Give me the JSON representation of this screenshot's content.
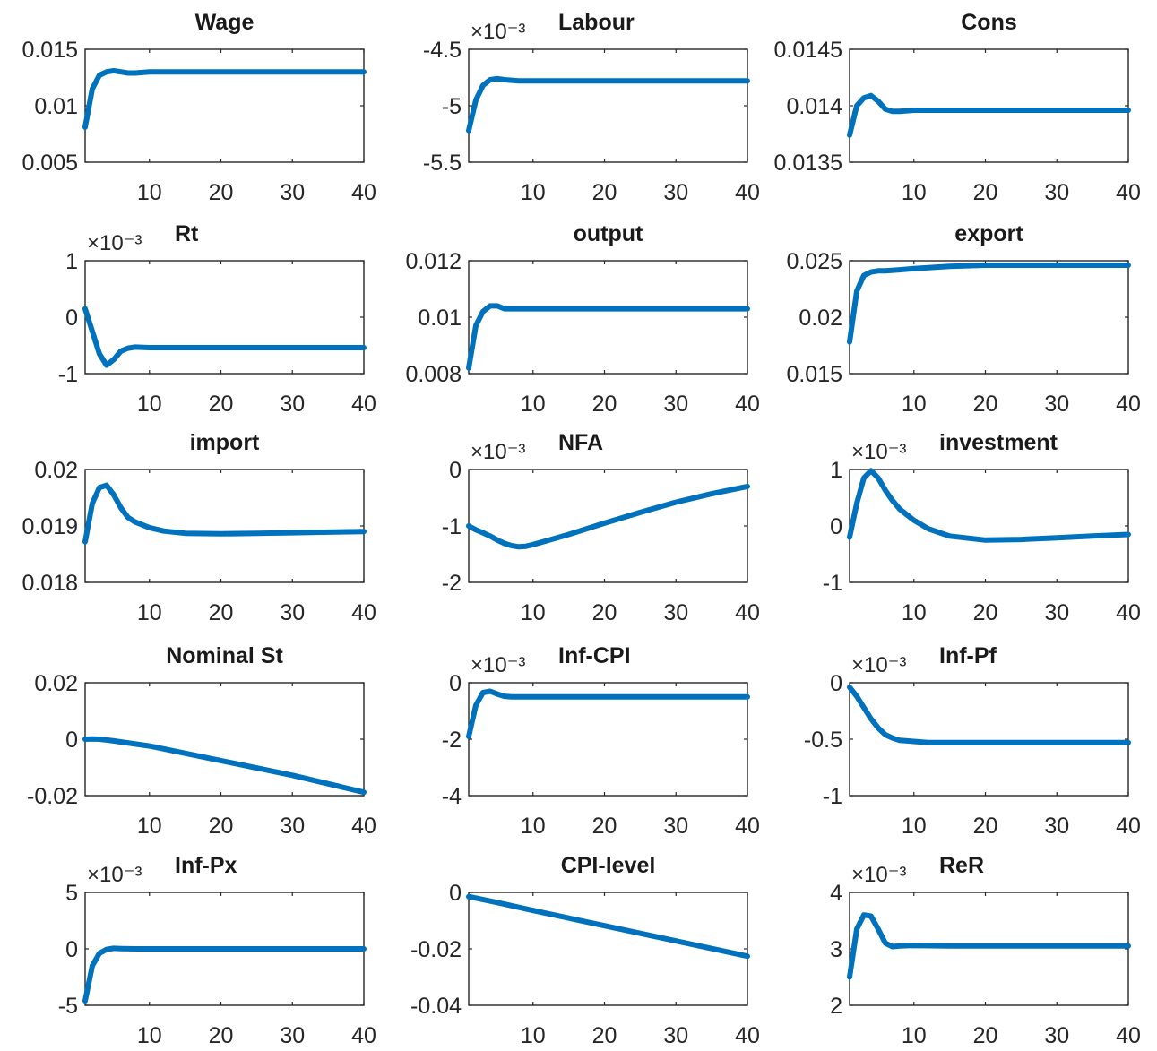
{
  "figure": {
    "rows": 5,
    "cols": 3
  },
  "chart_data": [
    {
      "type": "line",
      "title": "Wage",
      "exponent": "",
      "xticks": [
        10,
        20,
        30,
        40
      ],
      "xlim": [
        1,
        40
      ],
      "yticks": [
        "0.005",
        "0.01",
        "0.015"
      ],
      "ylim": [
        0.005,
        0.015
      ],
      "color": "#0072BD",
      "series": [
        {
          "x": [
            1,
            2,
            3,
            4,
            5,
            6,
            7,
            8,
            10,
            15,
            20,
            30,
            40
          ],
          "y": [
            0.0081,
            0.0115,
            0.0127,
            0.013,
            0.0131,
            0.013,
            0.0129,
            0.0129,
            0.013,
            0.013,
            0.013,
            0.013,
            0.013
          ]
        }
      ]
    },
    {
      "type": "line",
      "title": "Labour",
      "exponent": "×10⁻³",
      "xticks": [
        10,
        20,
        30,
        40
      ],
      "xlim": [
        1,
        40
      ],
      "yticks": [
        "-5.5",
        "-5",
        "-4.5"
      ],
      "ylim": [
        -5.5,
        -4.5
      ],
      "color": "#0072BD",
      "series": [
        {
          "x": [
            1,
            2,
            3,
            4,
            5,
            6,
            8,
            10,
            15,
            20,
            30,
            40
          ],
          "y": [
            -5.22,
            -4.95,
            -4.82,
            -4.77,
            -4.76,
            -4.77,
            -4.78,
            -4.78,
            -4.78,
            -4.78,
            -4.78,
            -4.78
          ]
        }
      ]
    },
    {
      "type": "line",
      "title": "Cons",
      "exponent": "",
      "xticks": [
        10,
        20,
        30,
        40
      ],
      "xlim": [
        1,
        40
      ],
      "yticks": [
        "0.0135",
        "0.014",
        "0.0145"
      ],
      "ylim": [
        0.0135,
        0.0145
      ],
      "color": "#0072BD",
      "series": [
        {
          "x": [
            1,
            2,
            3,
            4,
            5,
            6,
            7,
            8,
            10,
            15,
            20,
            30,
            40
          ],
          "y": [
            0.01374,
            0.014,
            0.01407,
            0.01409,
            0.01404,
            0.01397,
            0.01395,
            0.01395,
            0.01396,
            0.01396,
            0.01396,
            0.01396,
            0.01396
          ]
        }
      ]
    },
    {
      "type": "line",
      "title": "Rt",
      "exponent": "×10⁻³",
      "xticks": [
        10,
        20,
        30,
        40
      ],
      "xlim": [
        1,
        40
      ],
      "yticks": [
        "-1",
        "0",
        "1"
      ],
      "ylim": [
        -1,
        1
      ],
      "color": "#0072BD",
      "series": [
        {
          "x": [
            1,
            2,
            3,
            4,
            5,
            6,
            7,
            8,
            10,
            15,
            20,
            30,
            40
          ],
          "y": [
            0.15,
            -0.25,
            -0.65,
            -0.85,
            -0.75,
            -0.6,
            -0.55,
            -0.53,
            -0.54,
            -0.54,
            -0.54,
            -0.54,
            -0.54
          ]
        }
      ]
    },
    {
      "type": "line",
      "title": "output",
      "exponent": "",
      "xticks": [
        10,
        20,
        30,
        40
      ],
      "xlim": [
        1,
        40
      ],
      "yticks": [
        "0.008",
        "0.01",
        "0.012"
      ],
      "ylim": [
        0.008,
        0.012
      ],
      "color": "#0072BD",
      "series": [
        {
          "x": [
            1,
            2,
            3,
            4,
            5,
            6,
            7,
            8,
            10,
            15,
            20,
            30,
            40
          ],
          "y": [
            0.0082,
            0.0097,
            0.0102,
            0.0104,
            0.0104,
            0.0103,
            0.0103,
            0.0103,
            0.0103,
            0.0103,
            0.0103,
            0.0103,
            0.0103
          ]
        }
      ]
    },
    {
      "type": "line",
      "title": "export",
      "exponent": "",
      "xticks": [
        10,
        20,
        30,
        40
      ],
      "xlim": [
        1,
        40
      ],
      "yticks": [
        "0.015",
        "0.02",
        "0.025"
      ],
      "ylim": [
        0.015,
        0.025
      ],
      "color": "#0072BD",
      "series": [
        {
          "x": [
            1,
            2,
            3,
            4,
            5,
            6,
            8,
            10,
            15,
            20,
            30,
            40
          ],
          "y": [
            0.0178,
            0.0223,
            0.0237,
            0.024,
            0.0241,
            0.0241,
            0.0242,
            0.0243,
            0.0245,
            0.0246,
            0.0246,
            0.0246
          ]
        }
      ]
    },
    {
      "type": "line",
      "title": "import",
      "exponent": "",
      "xticks": [
        10,
        20,
        30,
        40
      ],
      "xlim": [
        1,
        40
      ],
      "yticks": [
        "0.018",
        "0.019",
        "0.02"
      ],
      "ylim": [
        0.018,
        0.02
      ],
      "color": "#0072BD",
      "series": [
        {
          "x": [
            1,
            2,
            3,
            4,
            5,
            6,
            7,
            8,
            10,
            12,
            15,
            20,
            25,
            30,
            35,
            40
          ],
          "y": [
            0.01872,
            0.0194,
            0.01968,
            0.01972,
            0.01955,
            0.01932,
            0.01915,
            0.01907,
            0.01897,
            0.01891,
            0.01887,
            0.01886,
            0.01887,
            0.01888,
            0.01889,
            0.0189
          ]
        }
      ]
    },
    {
      "type": "line",
      "title": "NFA",
      "exponent": "×10⁻³",
      "xticks": [
        10,
        20,
        30,
        40
      ],
      "xlim": [
        1,
        40
      ],
      "yticks": [
        "-2",
        "-1",
        "0"
      ],
      "ylim": [
        -2,
        0
      ],
      "color": "#0072BD",
      "series": [
        {
          "x": [
            1,
            2,
            3,
            4,
            5,
            6,
            7,
            8,
            9,
            10,
            12,
            15,
            20,
            25,
            30,
            35,
            40
          ],
          "y": [
            -1.0,
            -1.07,
            -1.12,
            -1.18,
            -1.25,
            -1.31,
            -1.35,
            -1.37,
            -1.36,
            -1.33,
            -1.26,
            -1.15,
            -0.95,
            -0.76,
            -0.58,
            -0.43,
            -0.3
          ]
        }
      ]
    },
    {
      "type": "line",
      "title": "investment",
      "exponent": "×10⁻³",
      "xticks": [
        10,
        20,
        30,
        40
      ],
      "xlim": [
        1,
        40
      ],
      "yticks": [
        "-1",
        "0",
        "1"
      ],
      "ylim": [
        -1,
        1
      ],
      "color": "#0072BD",
      "series": [
        {
          "x": [
            1,
            2,
            3,
            4,
            5,
            6,
            7,
            8,
            10,
            12,
            15,
            20,
            25,
            30,
            35,
            40
          ],
          "y": [
            -0.2,
            0.4,
            0.85,
            0.98,
            0.85,
            0.63,
            0.45,
            0.3,
            0.1,
            -0.05,
            -0.18,
            -0.25,
            -0.24,
            -0.21,
            -0.18,
            -0.15
          ]
        }
      ]
    },
    {
      "type": "line",
      "title": "Nominal St",
      "exponent": "",
      "xticks": [
        10,
        20,
        30,
        40
      ],
      "xlim": [
        1,
        40
      ],
      "yticks": [
        "-0.02",
        "0",
        "0.02"
      ],
      "ylim": [
        -0.02,
        0.02
      ],
      "color": "#0072BD",
      "series": [
        {
          "x": [
            1,
            2,
            3,
            4,
            5,
            10,
            20,
            30,
            40
          ],
          "y": [
            0.0,
            0.0001,
            0.0,
            -0.0003,
            -0.0006,
            -0.0024,
            -0.0076,
            -0.0128,
            -0.0188
          ]
        }
      ]
    },
    {
      "type": "line",
      "title": "Inf-CPI",
      "exponent": "×10⁻³",
      "xticks": [
        10,
        20,
        30,
        40
      ],
      "xlim": [
        1,
        40
      ],
      "yticks": [
        "-4",
        "-2",
        "0"
      ],
      "ylim": [
        -4,
        0
      ],
      "color": "#0072BD",
      "series": [
        {
          "x": [
            1,
            2,
            3,
            4,
            5,
            6,
            7,
            8,
            10,
            20,
            30,
            40
          ],
          "y": [
            -1.9,
            -0.8,
            -0.35,
            -0.3,
            -0.4,
            -0.48,
            -0.5,
            -0.5,
            -0.5,
            -0.5,
            -0.5,
            -0.5
          ]
        }
      ]
    },
    {
      "type": "line",
      "title": "Inf-Pf",
      "exponent": "×10⁻³",
      "xticks": [
        10,
        20,
        30,
        40
      ],
      "xlim": [
        1,
        40
      ],
      "yticks": [
        "-1",
        "-0.5",
        "0"
      ],
      "ylim": [
        -1,
        0
      ],
      "color": "#0072BD",
      "series": [
        {
          "x": [
            1,
            2,
            3,
            4,
            5,
            6,
            7,
            8,
            10,
            12,
            15,
            20,
            30,
            40
          ],
          "y": [
            -0.04,
            -0.12,
            -0.22,
            -0.32,
            -0.4,
            -0.46,
            -0.49,
            -0.51,
            -0.52,
            -0.53,
            -0.53,
            -0.53,
            -0.53,
            -0.53
          ]
        }
      ]
    },
    {
      "type": "line",
      "title": "Inf-Px",
      "exponent": "×10⁻³",
      "xticks": [
        10,
        20,
        30,
        40
      ],
      "xlim": [
        1,
        40
      ],
      "yticks": [
        "-5",
        "0",
        "5"
      ],
      "ylim": [
        -5,
        5
      ],
      "color": "#0072BD",
      "series": [
        {
          "x": [
            1,
            2,
            3,
            4,
            5,
            6,
            8,
            10,
            20,
            30,
            40
          ],
          "y": [
            -4.6,
            -1.5,
            -0.4,
            -0.05,
            0.05,
            0.02,
            0.0,
            0.0,
            0.0,
            0.0,
            0.0
          ]
        }
      ]
    },
    {
      "type": "line",
      "title": "CPI-level",
      "exponent": "",
      "xticks": [
        10,
        20,
        30,
        40
      ],
      "xlim": [
        1,
        40
      ],
      "yticks": [
        "-0.04",
        "-0.02",
        "0"
      ],
      "ylim": [
        -0.04,
        0.0
      ],
      "color": "#0072BD",
      "series": [
        {
          "x": [
            1,
            5,
            10,
            20,
            30,
            40
          ],
          "y": [
            -0.0015,
            -0.0036,
            -0.0064,
            -0.0118,
            -0.0172,
            -0.0226
          ]
        }
      ]
    },
    {
      "type": "line",
      "title": "ReR",
      "exponent": "×10⁻³",
      "xticks": [
        10,
        20,
        30,
        40
      ],
      "xlim": [
        1,
        40
      ],
      "yticks": [
        "2",
        "3",
        "4"
      ],
      "ylim": [
        2,
        4
      ],
      "color": "#0072BD",
      "series": [
        {
          "x": [
            1,
            2,
            3,
            4,
            5,
            6,
            7,
            8,
            10,
            15,
            20,
            30,
            40
          ],
          "y": [
            2.5,
            3.35,
            3.6,
            3.58,
            3.35,
            3.1,
            3.04,
            3.05,
            3.06,
            3.05,
            3.05,
            3.05,
            3.05
          ]
        }
      ]
    }
  ]
}
